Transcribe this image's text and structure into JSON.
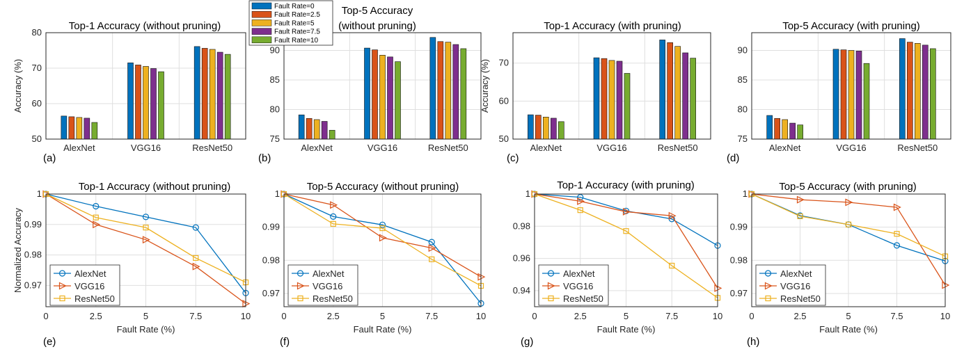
{
  "colors": {
    "fault_rates": [
      "#0072BD",
      "#D95319",
      "#EDB120",
      "#7E2F8E",
      "#77AC30"
    ],
    "models": [
      "#0072BD",
      "#D95319",
      "#EDB120"
    ]
  },
  "bar_legend": [
    "Fault Rate=0",
    "Fault Rate=2.5",
    "Fault Rate=5",
    "Fault Rate=7.5",
    "Fault Rate=10"
  ],
  "chart_data": [
    {
      "panel": "(a)",
      "type": "bar",
      "title": "Top-1 Accuracy (without pruning)",
      "ylabel": "Accuracy (%)",
      "ylim": [
        50,
        80
      ],
      "yticks": [
        50,
        60,
        70,
        80
      ],
      "categories": [
        "AlexNet",
        "VGG16",
        "ResNet50"
      ],
      "series": [
        {
          "name": "Fault Rate=0",
          "values": [
            56.5,
            71.5,
            76.1
          ]
        },
        {
          "name": "Fault Rate=2.5",
          "values": [
            56.3,
            70.9,
            75.6
          ]
        },
        {
          "name": "Fault Rate=5",
          "values": [
            56.1,
            70.5,
            75.3
          ]
        },
        {
          "name": "Fault Rate=7.5",
          "values": [
            55.9,
            69.9,
            74.5
          ]
        },
        {
          "name": "Fault Rate=10",
          "values": [
            54.7,
            69.0,
            73.9
          ]
        }
      ]
    },
    {
      "panel": "(b)",
      "type": "bar",
      "title": [
        "Top-5 Accuracy",
        "(without pruning)"
      ],
      "ylabel": "",
      "ylim": [
        75,
        93
      ],
      "yticks": [
        75,
        80,
        85,
        90
      ],
      "categories": [
        "AlexNet",
        "VGG16",
        "ResNet50"
      ],
      "series": [
        {
          "name": "Fault Rate=0",
          "values": [
            79.1,
            90.4,
            92.2
          ]
        },
        {
          "name": "Fault Rate=2.5",
          "values": [
            78.5,
            90.1,
            91.5
          ]
        },
        {
          "name": "Fault Rate=5",
          "values": [
            78.3,
            89.2,
            91.4
          ]
        },
        {
          "name": "Fault Rate=7.5",
          "values": [
            78.0,
            88.9,
            91.0
          ]
        },
        {
          "name": "Fault Rate=10",
          "values": [
            76.5,
            88.1,
            90.3
          ]
        }
      ]
    },
    {
      "panel": "(c)",
      "type": "bar",
      "title": "Top-1 Accuracy (with pruning)",
      "ylabel": "Accuracy (%)",
      "ylim": [
        50,
        78
      ],
      "yticks": [
        50,
        60,
        70
      ],
      "categories": [
        "AlexNet",
        "VGG16",
        "ResNet50"
      ],
      "series": [
        {
          "name": "Fault Rate=0",
          "values": [
            56.4,
            71.4,
            76.1
          ]
        },
        {
          "name": "Fault Rate=2.5",
          "values": [
            56.3,
            71.2,
            75.4
          ]
        },
        {
          "name": "Fault Rate=5",
          "values": [
            55.8,
            70.7,
            74.4
          ]
        },
        {
          "name": "Fault Rate=7.5",
          "values": [
            55.5,
            70.5,
            72.7
          ]
        },
        {
          "name": "Fault Rate=10",
          "values": [
            54.6,
            67.3,
            71.3
          ]
        }
      ]
    },
    {
      "panel": "(d)",
      "type": "bar",
      "title": "Top-5 Accuracy (with pruning)",
      "ylabel": "",
      "ylim": [
        75,
        93
      ],
      "yticks": [
        75,
        80,
        85,
        90
      ],
      "categories": [
        "AlexNet",
        "VGG16",
        "ResNet50"
      ],
      "series": [
        {
          "name": "Fault Rate=0",
          "values": [
            79.0,
            90.2,
            92.0
          ]
        },
        {
          "name": "Fault Rate=2.5",
          "values": [
            78.5,
            90.1,
            91.4
          ]
        },
        {
          "name": "Fault Rate=5",
          "values": [
            78.3,
            90.0,
            91.2
          ]
        },
        {
          "name": "Fault Rate=7.5",
          "values": [
            77.7,
            89.9,
            90.9
          ]
        },
        {
          "name": "Fault Rate=10",
          "values": [
            77.4,
            87.8,
            90.3
          ]
        }
      ]
    },
    {
      "panel": "(e)",
      "type": "line",
      "title": "Top-1 Accuracy (without pruning)",
      "xlabel": "Fault Rate (%)",
      "ylabel": "Normalized Accuracy",
      "x": [
        0,
        2.5,
        5,
        7.5,
        10
      ],
      "xticks": [
        "0",
        "2.5",
        "5",
        "7.5",
        "10"
      ],
      "ylim": [
        0.963,
        1.0
      ],
      "yticks": [
        0.97,
        0.98,
        0.99,
        1
      ],
      "ytick_labels": [
        "0.97",
        "0.98",
        "0.99",
        "1"
      ],
      "legend": "bottom-left",
      "series": [
        {
          "name": "AlexNet",
          "marker": "circle",
          "values": [
            1.0,
            0.996,
            0.9925,
            0.989,
            0.9675
          ]
        },
        {
          "name": "VGG16",
          "marker": "triangle",
          "values": [
            1.0,
            0.99,
            0.985,
            0.9762,
            0.964
          ]
        },
        {
          "name": "ResNet50",
          "marker": "square",
          "values": [
            1.0,
            0.9923,
            0.989,
            0.979,
            0.971
          ]
        }
      ]
    },
    {
      "panel": "(f)",
      "type": "line",
      "title": "Top-5 Accuracy (without pruning)",
      "xlabel": "Fault Rate (%)",
      "ylabel": "",
      "x": [
        0,
        2.5,
        5,
        7.5,
        10
      ],
      "xticks": [
        "0",
        "2.5",
        "5",
        "7.5",
        "10"
      ],
      "ylim": [
        0.966,
        1.0
      ],
      "yticks": [
        0.97,
        0.98,
        0.99,
        1
      ],
      "ytick_labels": [
        "0.97",
        "0.98",
        "0.99",
        "1"
      ],
      "legend": "bottom-left",
      "series": [
        {
          "name": "AlexNet",
          "marker": "circle",
          "values": [
            1.0,
            0.9932,
            0.9907,
            0.9855,
            0.967
          ]
        },
        {
          "name": "VGG16",
          "marker": "triangle",
          "values": [
            1.0,
            0.9967,
            0.9868,
            0.9837,
            0.975
          ]
        },
        {
          "name": "ResNet50",
          "marker": "square",
          "values": [
            1.0,
            0.991,
            0.9897,
            0.9803,
            0.9723
          ]
        }
      ]
    },
    {
      "panel": "(g)",
      "type": "line",
      "title": "Top-1 Accuracy (with pruning)",
      "xlabel": "Fault Rate (%)",
      "ylabel": "",
      "x": [
        0,
        2.5,
        5,
        7.5,
        10
      ],
      "xticks": [
        "0",
        "2.5",
        "5",
        "7.5",
        "10"
      ],
      "ylim": [
        0.93,
        1.0
      ],
      "yticks": [
        0.94,
        0.96,
        0.98,
        1
      ],
      "ytick_labels": [
        "0.94",
        "0.96",
        "0.98",
        "1"
      ],
      "legend": "bottom-left",
      "series": [
        {
          "name": "AlexNet",
          "marker": "circle",
          "values": [
            1.0,
            0.998,
            0.9895,
            0.9845,
            0.968
          ]
        },
        {
          "name": "VGG16",
          "marker": "triangle",
          "values": [
            1.0,
            0.9955,
            0.989,
            0.9865,
            0.9415
          ]
        },
        {
          "name": "ResNet50",
          "marker": "square",
          "values": [
            1.0,
            0.99,
            0.977,
            0.9555,
            0.9355
          ]
        }
      ]
    },
    {
      "panel": "(h)",
      "type": "line",
      "title": "Top-5 Accuracy (with pruning)",
      "xlabel": "Fault Rate (%)",
      "ylabel": "",
      "x": [
        0,
        2.5,
        5,
        7.5,
        10
      ],
      "xticks": [
        "0",
        "2.5",
        "5",
        "7.5",
        "10"
      ],
      "ylim": [
        0.966,
        1.0
      ],
      "yticks": [
        0.97,
        0.98,
        0.99,
        1
      ],
      "ytick_labels": [
        "0.97",
        "0.98",
        "0.99",
        "1"
      ],
      "legend": "bottom-left",
      "series": [
        {
          "name": "AlexNet",
          "marker": "circle",
          "values": [
            1.0,
            0.9935,
            0.9908,
            0.9845,
            0.9798
          ]
        },
        {
          "name": "VGG16",
          "marker": "triangle",
          "values": [
            1.0,
            0.9983,
            0.9975,
            0.996,
            0.9725
          ]
        },
        {
          "name": "ResNet50",
          "marker": "square",
          "values": [
            1.0,
            0.9933,
            0.9908,
            0.988,
            0.9812
          ]
        }
      ]
    }
  ]
}
